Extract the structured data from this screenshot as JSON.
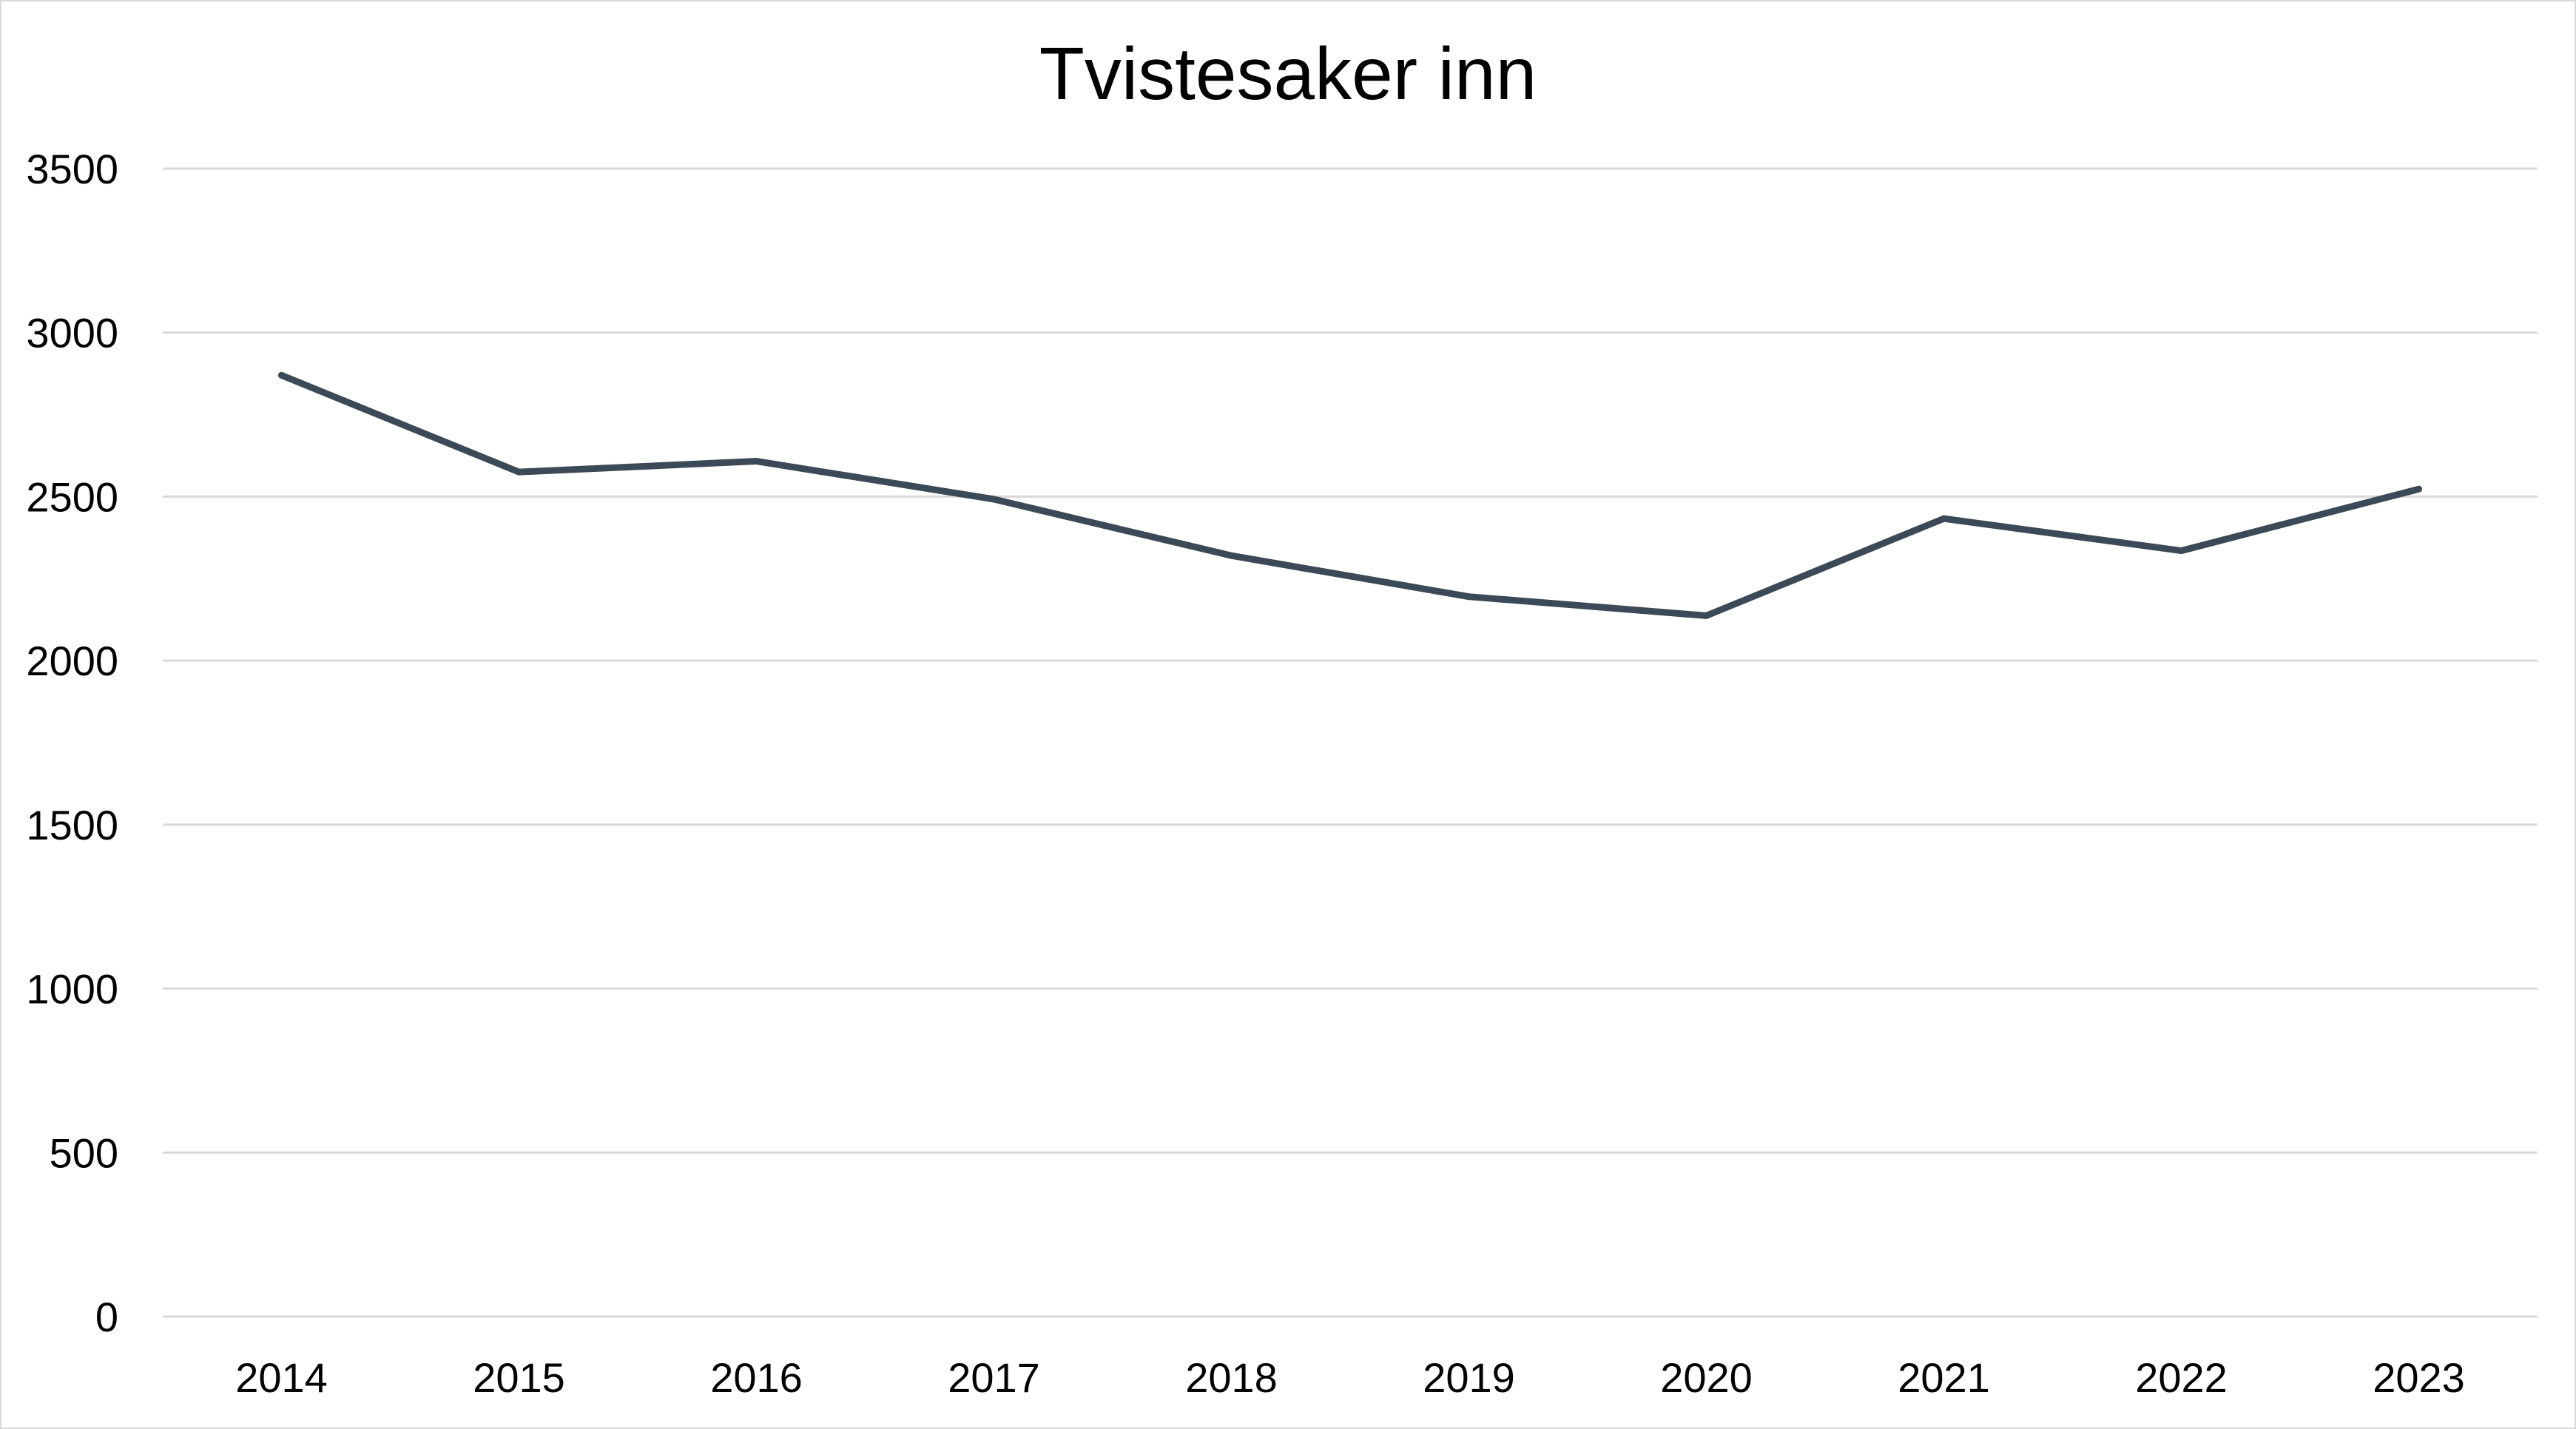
{
  "chart_data": {
    "type": "line",
    "title": "Tvistesaker inn",
    "xlabel": "",
    "ylabel": "",
    "categories": [
      "2014",
      "2015",
      "2016",
      "2017",
      "2018",
      "2019",
      "2020",
      "2021",
      "2022",
      "2023"
    ],
    "series": [
      {
        "values": [
          2870,
          2575,
          2608,
          2492,
          2320,
          2195,
          2137,
          2433,
          2335,
          2523
        ]
      }
    ],
    "ylim": [
      0,
      3500
    ],
    "yticks": [
      "0",
      "500",
      "1000",
      "1500",
      "2000",
      "2500",
      "3000",
      "3500"
    ],
    "grid": true,
    "legend": "none",
    "colors": {
      "line": "#3b4a56",
      "grid": "#d9d9d9",
      "text": "#000000"
    }
  }
}
